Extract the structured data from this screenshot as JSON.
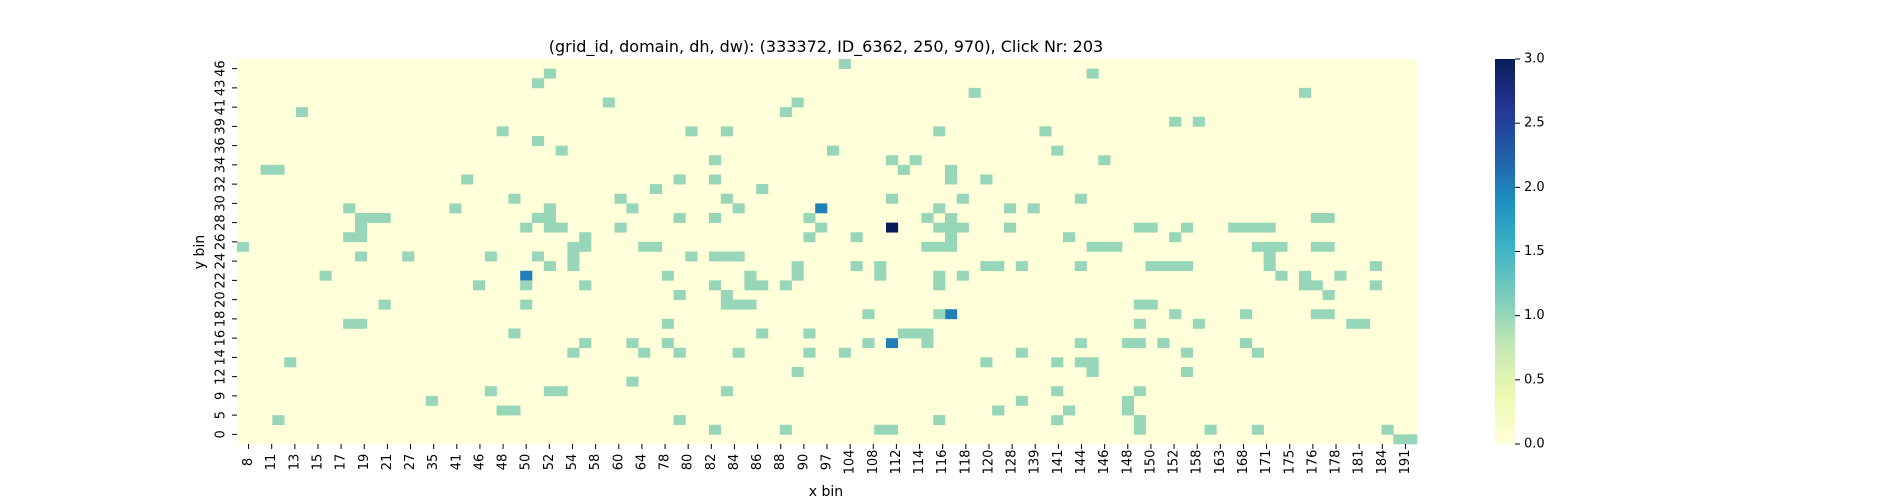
{
  "chart_data": {
    "type": "heatmap",
    "title": "(grid_id, domain, dh, dw): (333372, ID_6362, 250, 970), Click Nr: 203",
    "xlabel": "x bin",
    "ylabel": "y bin",
    "x_tick_labels": [
      "8",
      "11",
      "13",
      "15",
      "17",
      "19",
      "21",
      "27",
      "35",
      "41",
      "46",
      "48",
      "50",
      "52",
      "54",
      "58",
      "60",
      "64",
      "78",
      "80",
      "82",
      "84",
      "86",
      "88",
      "90",
      "97",
      "104",
      "108",
      "112",
      "114",
      "116",
      "118",
      "120",
      "128",
      "139",
      "141",
      "144",
      "146",
      "148",
      "150",
      "152",
      "158",
      "163",
      "168",
      "171",
      "175",
      "176",
      "178",
      "181",
      "184",
      "191"
    ],
    "y_tick_labels": [
      "46",
      "43",
      "41",
      "39",
      "36",
      "34",
      "32",
      "30",
      "28",
      "26",
      "24",
      "22",
      "20",
      "18",
      "16",
      "14",
      "12",
      "9",
      "5",
      "0"
    ],
    "colorbar": {
      "min": 0.0,
      "max": 3.0,
      "tick_labels": [
        "0.0",
        "0.5",
        "1.0",
        "1.5",
        "2.0",
        "2.5",
        "3.0"
      ],
      "colormap": "YlGnBu",
      "colors": [
        "#ffffd9",
        "#edf8b1",
        "#c7e9b4",
        "#7fcdbb",
        "#41b6c4",
        "#1d91c0",
        "#225ea8",
        "#253494",
        "#081d58"
      ]
    },
    "grid": {
      "n_cols": 100,
      "n_rows": 40
    },
    "cells": [
      {
        "x": 51,
        "y": 39,
        "v": 1
      },
      {
        "x": 26,
        "y": 38,
        "v": 1
      },
      {
        "x": 72,
        "y": 38,
        "v": 1
      },
      {
        "x": 25,
        "y": 37,
        "v": 1
      },
      {
        "x": 62,
        "y": 36,
        "v": 1
      },
      {
        "x": 90,
        "y": 36,
        "v": 1
      },
      {
        "x": 31,
        "y": 35,
        "v": 1
      },
      {
        "x": 47,
        "y": 35,
        "v": 1
      },
      {
        "x": 5,
        "y": 34,
        "v": 1
      },
      {
        "x": 46,
        "y": 34,
        "v": 1
      },
      {
        "x": 79,
        "y": 33,
        "v": 1
      },
      {
        "x": 81,
        "y": 33,
        "v": 1
      },
      {
        "x": 22,
        "y": 32,
        "v": 1
      },
      {
        "x": 41,
        "y": 32,
        "v": 1
      },
      {
        "x": 59,
        "y": 32,
        "v": 1
      },
      {
        "x": 38,
        "y": 32,
        "v": 1
      },
      {
        "x": 68,
        "y": 32,
        "v": 1
      },
      {
        "x": 25,
        "y": 31,
        "v": 1
      },
      {
        "x": 27,
        "y": 30,
        "v": 1
      },
      {
        "x": 50,
        "y": 30,
        "v": 1
      },
      {
        "x": 69,
        "y": 30,
        "v": 1
      },
      {
        "x": 40,
        "y": 29,
        "v": 1
      },
      {
        "x": 55,
        "y": 29,
        "v": 1
      },
      {
        "x": 57,
        "y": 29,
        "v": 1
      },
      {
        "x": 73,
        "y": 29,
        "v": 1
      },
      {
        "x": 2,
        "y": 28,
        "v": 1
      },
      {
        "x": 3,
        "y": 28,
        "v": 1
      },
      {
        "x": 56,
        "y": 28,
        "v": 1
      },
      {
        "x": 60,
        "y": 28,
        "v": 1
      },
      {
        "x": 19,
        "y": 27,
        "v": 1
      },
      {
        "x": 37,
        "y": 27,
        "v": 1
      },
      {
        "x": 35,
        "y": 26,
        "v": 1
      },
      {
        "x": 44,
        "y": 26,
        "v": 1
      },
      {
        "x": 23,
        "y": 25,
        "v": 1
      },
      {
        "x": 32,
        "y": 25,
        "v": 1
      },
      {
        "x": 41,
        "y": 25,
        "v": 1
      },
      {
        "x": 55,
        "y": 25,
        "v": 1
      },
      {
        "x": 61,
        "y": 25,
        "v": 1
      },
      {
        "x": 71,
        "y": 25,
        "v": 1
      },
      {
        "x": 9,
        "y": 24,
        "v": 1
      },
      {
        "x": 18,
        "y": 24,
        "v": 1
      },
      {
        "x": 26,
        "y": 24,
        "v": 1
      },
      {
        "x": 33,
        "y": 24,
        "v": 1
      },
      {
        "x": 42,
        "y": 24,
        "v": 1
      },
      {
        "x": 49,
        "y": 24,
        "v": 2
      },
      {
        "x": 59,
        "y": 24,
        "v": 1
      },
      {
        "x": 10,
        "y": 23,
        "v": 1
      },
      {
        "x": 11,
        "y": 23,
        "v": 1
      },
      {
        "x": 12,
        "y": 23,
        "v": 1
      },
      {
        "x": 25,
        "y": 23,
        "v": 1
      },
      {
        "x": 26,
        "y": 23,
        "v": 1
      },
      {
        "x": 37,
        "y": 23,
        "v": 1
      },
      {
        "x": 40,
        "y": 23,
        "v": 1
      },
      {
        "x": 48,
        "y": 23,
        "v": 1
      },
      {
        "x": 58,
        "y": 23,
        "v": 1
      },
      {
        "x": 60,
        "y": 23,
        "v": 1
      },
      {
        "x": 60,
        "y": 22,
        "v": 1
      },
      {
        "x": 91,
        "y": 23,
        "v": 1
      },
      {
        "x": 92,
        "y": 23,
        "v": 1
      },
      {
        "x": 26,
        "y": 22,
        "v": 1
      },
      {
        "x": 27,
        "y": 22,
        "v": 1
      },
      {
        "x": 24,
        "y": 22,
        "v": 1
      },
      {
        "x": 10,
        "y": 22,
        "v": 1
      },
      {
        "x": 32,
        "y": 22,
        "v": 1
      },
      {
        "x": 49,
        "y": 22,
        "v": 1
      },
      {
        "x": 55,
        "y": 22,
        "v": 3
      },
      {
        "x": 59,
        "y": 22,
        "v": 1
      },
      {
        "x": 61,
        "y": 22,
        "v": 1
      },
      {
        "x": 65,
        "y": 22,
        "v": 1
      },
      {
        "x": 76,
        "y": 22,
        "v": 1
      },
      {
        "x": 77,
        "y": 22,
        "v": 1
      },
      {
        "x": 80,
        "y": 22,
        "v": 1
      },
      {
        "x": 84,
        "y": 22,
        "v": 1
      },
      {
        "x": 85,
        "y": 22,
        "v": 1
      },
      {
        "x": 86,
        "y": 22,
        "v": 1
      },
      {
        "x": 87,
        "y": 22,
        "v": 1
      },
      {
        "x": 9,
        "y": 21,
        "v": 1
      },
      {
        "x": 10,
        "y": 21,
        "v": 1
      },
      {
        "x": 29,
        "y": 21,
        "v": 1
      },
      {
        "x": 48,
        "y": 21,
        "v": 1
      },
      {
        "x": 52,
        "y": 21,
        "v": 1
      },
      {
        "x": 60,
        "y": 21,
        "v": 1
      },
      {
        "x": 79,
        "y": 21,
        "v": 1
      },
      {
        "x": 59,
        "y": 20,
        "v": 1
      },
      {
        "x": 60,
        "y": 20,
        "v": 1
      },
      {
        "x": 58,
        "y": 20,
        "v": 1
      },
      {
        "x": 28,
        "y": 20,
        "v": 1
      },
      {
        "x": 29,
        "y": 20,
        "v": 1
      },
      {
        "x": 72,
        "y": 20,
        "v": 1
      },
      {
        "x": 73,
        "y": 20,
        "v": 1
      },
      {
        "x": 86,
        "y": 20,
        "v": 1
      },
      {
        "x": 87,
        "y": 20,
        "v": 1
      },
      {
        "x": 88,
        "y": 20,
        "v": 1
      },
      {
        "x": 91,
        "y": 20,
        "v": 1
      },
      {
        "x": 92,
        "y": 20,
        "v": 1
      },
      {
        "x": 34,
        "y": 20,
        "v": 1
      },
      {
        "x": 35,
        "y": 20,
        "v": 1
      },
      {
        "x": 10,
        "y": 19,
        "v": 1
      },
      {
        "x": 21,
        "y": 19,
        "v": 1
      },
      {
        "x": 14,
        "y": 19,
        "v": 1
      },
      {
        "x": 28,
        "y": 19,
        "v": 1
      },
      {
        "x": 38,
        "y": 19,
        "v": 1
      },
      {
        "x": 40,
        "y": 19,
        "v": 1
      },
      {
        "x": 41,
        "y": 19,
        "v": 1
      },
      {
        "x": 42,
        "y": 19,
        "v": 1
      },
      {
        "x": 25,
        "y": 19,
        "v": 1
      },
      {
        "x": 28,
        "y": 18,
        "v": 1
      },
      {
        "x": 26,
        "y": 18,
        "v": 1
      },
      {
        "x": 47,
        "y": 18,
        "v": 1
      },
      {
        "x": 52,
        "y": 18,
        "v": 1
      },
      {
        "x": 54,
        "y": 18,
        "v": 1
      },
      {
        "x": 63,
        "y": 18,
        "v": 1
      },
      {
        "x": 64,
        "y": 18,
        "v": 1
      },
      {
        "x": 66,
        "y": 18,
        "v": 1
      },
      {
        "x": 71,
        "y": 18,
        "v": 1
      },
      {
        "x": 77,
        "y": 18,
        "v": 1
      },
      {
        "x": 78,
        "y": 18,
        "v": 1
      },
      {
        "x": 79,
        "y": 18,
        "v": 1
      },
      {
        "x": 80,
        "y": 18,
        "v": 1
      },
      {
        "x": 87,
        "y": 18,
        "v": 1
      },
      {
        "x": 96,
        "y": 18,
        "v": 1
      },
      {
        "x": 7,
        "y": 17,
        "v": 1
      },
      {
        "x": 36,
        "y": 17,
        "v": 1
      },
      {
        "x": 43,
        "y": 17,
        "v": 1
      },
      {
        "x": 47,
        "y": 17,
        "v": 1
      },
      {
        "x": 24,
        "y": 17,
        "v": 2
      },
      {
        "x": 54,
        "y": 17,
        "v": 1
      },
      {
        "x": 59,
        "y": 16,
        "v": 1
      },
      {
        "x": 59,
        "y": 17,
        "v": 1
      },
      {
        "x": 61,
        "y": 17,
        "v": 1
      },
      {
        "x": 88,
        "y": 17,
        "v": 1
      },
      {
        "x": 90,
        "y": 17,
        "v": 1
      },
      {
        "x": 90,
        "y": 16,
        "v": 1
      },
      {
        "x": 91,
        "y": 16,
        "v": 1
      },
      {
        "x": 93,
        "y": 17,
        "v": 1
      },
      {
        "x": 96,
        "y": 16,
        "v": 1
      },
      {
        "x": 20,
        "y": 16,
        "v": 1
      },
      {
        "x": 24,
        "y": 16,
        "v": 1
      },
      {
        "x": 43,
        "y": 16,
        "v": 1
      },
      {
        "x": 44,
        "y": 16,
        "v": 1
      },
      {
        "x": 46,
        "y": 16,
        "v": 1
      },
      {
        "x": 40,
        "y": 16,
        "v": 1
      },
      {
        "x": 29,
        "y": 16,
        "v": 1
      },
      {
        "x": 92,
        "y": 15,
        "v": 1
      },
      {
        "x": 37,
        "y": 15,
        "v": 1
      },
      {
        "x": 41,
        "y": 15,
        "v": 1
      },
      {
        "x": 41,
        "y": 14,
        "v": 1
      },
      {
        "x": 42,
        "y": 14,
        "v": 1
      },
      {
        "x": 43,
        "y": 14,
        "v": 1
      },
      {
        "x": 12,
        "y": 14,
        "v": 1
      },
      {
        "x": 24,
        "y": 14,
        "v": 1
      },
      {
        "x": 60,
        "y": 13,
        "v": 2
      },
      {
        "x": 59,
        "y": 13,
        "v": 1
      },
      {
        "x": 53,
        "y": 13,
        "v": 1
      },
      {
        "x": 85,
        "y": 13,
        "v": 1
      },
      {
        "x": 79,
        "y": 13,
        "v": 1
      },
      {
        "x": 91,
        "y": 13,
        "v": 1
      },
      {
        "x": 92,
        "y": 13,
        "v": 1
      },
      {
        "x": 94,
        "y": 12,
        "v": 1
      },
      {
        "x": 95,
        "y": 12,
        "v": 1
      },
      {
        "x": 76,
        "y": 12,
        "v": 1
      },
      {
        "x": 9,
        "y": 12,
        "v": 1
      },
      {
        "x": 10,
        "y": 12,
        "v": 1
      },
      {
        "x": 81,
        "y": 12,
        "v": 1
      },
      {
        "x": 36,
        "y": 12,
        "v": 1
      },
      {
        "x": 44,
        "y": 11,
        "v": 1
      },
      {
        "x": 57,
        "y": 11,
        "v": 1
      },
      {
        "x": 56,
        "y": 11,
        "v": 1
      },
      {
        "x": 58,
        "y": 11,
        "v": 1
      },
      {
        "x": 58,
        "y": 10,
        "v": 1
      },
      {
        "x": 23,
        "y": 11,
        "v": 1
      },
      {
        "x": 48,
        "y": 11,
        "v": 1
      },
      {
        "x": 55,
        "y": 10,
        "v": 2
      },
      {
        "x": 71,
        "y": 10,
        "v": 1
      },
      {
        "x": 75,
        "y": 10,
        "v": 1
      },
      {
        "x": 85,
        "y": 10,
        "v": 1
      },
      {
        "x": 76,
        "y": 10,
        "v": 1
      },
      {
        "x": 53,
        "y": 10,
        "v": 1
      },
      {
        "x": 33,
        "y": 10,
        "v": 1
      },
      {
        "x": 36,
        "y": 10,
        "v": 1
      },
      {
        "x": 29,
        "y": 10,
        "v": 1
      },
      {
        "x": 78,
        "y": 10,
        "v": 1
      },
      {
        "x": 34,
        "y": 9,
        "v": 1
      },
      {
        "x": 28,
        "y": 9,
        "v": 1
      },
      {
        "x": 51,
        "y": 9,
        "v": 1
      },
      {
        "x": 37,
        "y": 9,
        "v": 1
      },
      {
        "x": 42,
        "y": 9,
        "v": 1
      },
      {
        "x": 48,
        "y": 9,
        "v": 1
      },
      {
        "x": 66,
        "y": 9,
        "v": 1
      },
      {
        "x": 80,
        "y": 9,
        "v": 1
      },
      {
        "x": 86,
        "y": 9,
        "v": 1
      },
      {
        "x": 69,
        "y": 8,
        "v": 1
      },
      {
        "x": 71,
        "y": 8,
        "v": 1
      },
      {
        "x": 72,
        "y": 8,
        "v": 1
      },
      {
        "x": 4,
        "y": 8,
        "v": 1
      },
      {
        "x": 72,
        "y": 7,
        "v": 1
      },
      {
        "x": 63,
        "y": 8,
        "v": 1
      },
      {
        "x": 80,
        "y": 7,
        "v": 1
      },
      {
        "x": 33,
        "y": 6,
        "v": 1
      },
      {
        "x": 47,
        "y": 7,
        "v": 1
      },
      {
        "x": 41,
        "y": 5,
        "v": 1
      },
      {
        "x": 21,
        "y": 5,
        "v": 1
      },
      {
        "x": 26,
        "y": 5,
        "v": 1
      },
      {
        "x": 27,
        "y": 5,
        "v": 1
      },
      {
        "x": 16,
        "y": 4,
        "v": 1
      },
      {
        "x": 66,
        "y": 4,
        "v": 1
      },
      {
        "x": 64,
        "y": 3,
        "v": 1
      },
      {
        "x": 22,
        "y": 3,
        "v": 1
      },
      {
        "x": 23,
        "y": 3,
        "v": 1
      },
      {
        "x": 37,
        "y": 2,
        "v": 1
      },
      {
        "x": 59,
        "y": 2,
        "v": 1
      },
      {
        "x": 3,
        "y": 2,
        "v": 1
      },
      {
        "x": 40,
        "y": 1,
        "v": 1
      },
      {
        "x": 55,
        "y": 1,
        "v": 1
      },
      {
        "x": 46,
        "y": 1,
        "v": 1
      },
      {
        "x": 54,
        "y": 1,
        "v": 1
      },
      {
        "x": 82,
        "y": 1,
        "v": 1
      },
      {
        "x": 86,
        "y": 1,
        "v": 1
      },
      {
        "x": 69,
        "y": 5,
        "v": 1
      },
      {
        "x": 70,
        "y": 3,
        "v": 1
      },
      {
        "x": 75,
        "y": 4,
        "v": 1
      },
      {
        "x": 76,
        "y": 5,
        "v": 1
      },
      {
        "x": 69,
        "y": 2,
        "v": 1
      },
      {
        "x": 0,
        "y": 20,
        "v": 1
      },
      {
        "x": 40,
        "y": 27,
        "v": 1
      },
      {
        "x": 60,
        "y": 27,
        "v": 1
      },
      {
        "x": 63,
        "y": 27,
        "v": 1
      },
      {
        "x": 65,
        "y": 24,
        "v": 1
      },
      {
        "x": 67,
        "y": 24,
        "v": 1
      },
      {
        "x": 70,
        "y": 21,
        "v": 1
      },
      {
        "x": 74,
        "y": 20,
        "v": 1
      },
      {
        "x": 97,
        "y": 1,
        "v": 1
      },
      {
        "x": 98,
        "y": 0,
        "v": 1
      },
      {
        "x": 76,
        "y": 2,
        "v": 1
      },
      {
        "x": 76,
        "y": 1,
        "v": 1
      },
      {
        "x": 99,
        "y": 0,
        "v": 1
      },
      {
        "x": 75,
        "y": 3,
        "v": 1
      },
      {
        "x": 76,
        "y": 14,
        "v": 1
      },
      {
        "x": 77,
        "y": 14,
        "v": 1
      },
      {
        "x": 87,
        "y": 19,
        "v": 1
      }
    ]
  }
}
